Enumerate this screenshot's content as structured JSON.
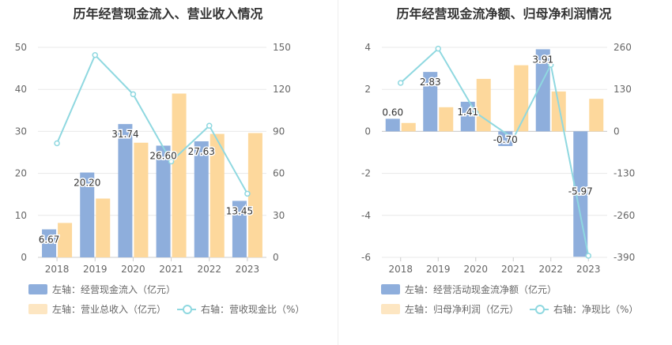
{
  "chart_data": [
    {
      "type": "bar",
      "title": "历年经营现金流入、营业收入情况",
      "categories": [
        "2018",
        "2019",
        "2020",
        "2021",
        "2022",
        "2023"
      ],
      "left_axis": {
        "ticks": [
          "0",
          "10",
          "20",
          "30",
          "40",
          "50"
        ],
        "ylim": [
          0,
          50
        ]
      },
      "right_axis": {
        "ticks": [
          "0",
          "30",
          "60",
          "90",
          "120",
          "150"
        ],
        "ylim": [
          0,
          150
        ]
      },
      "series": [
        {
          "name": "左轴：经营现金流入（亿元）",
          "type": "bar",
          "axis": "left",
          "color": "#8eaedc",
          "values": [
            6.67,
            20.2,
            31.74,
            26.6,
            27.63,
            13.45
          ],
          "labels": [
            "6.67",
            "20.20",
            "31.74",
            "26.60",
            "27.63",
            "13.45"
          ]
        },
        {
          "name": "左轴：营业总收入（亿元）",
          "type": "bar",
          "axis": "left",
          "color": "#fdd89c",
          "values": [
            8.2,
            14.0,
            27.3,
            39.0,
            29.4,
            29.6
          ]
        },
        {
          "name": "右轴：营收现金比（%）",
          "type": "line",
          "axis": "right",
          "color": "#8fd8e0",
          "values": [
            81.5,
            144.5,
            116.5,
            68.5,
            94.0,
            45.5
          ]
        }
      ],
      "legend": {
        "row1": [
          "左轴：经营现金流入（亿元）"
        ],
        "row2": [
          "左轴：营业总收入（亿元）",
          "右轴：营收现金比（%）"
        ]
      }
    },
    {
      "type": "bar",
      "title": "历年经营现金流净额、归母净利润情况",
      "categories": [
        "2018",
        "2019",
        "2020",
        "2021",
        "2022",
        "2023"
      ],
      "left_axis": {
        "ticks": [
          "-6",
          "-4",
          "-2",
          "0",
          "2",
          "4"
        ],
        "ylim": [
          -6,
          4
        ]
      },
      "right_axis": {
        "ticks": [
          "-390",
          "-260",
          "-130",
          "0",
          "130",
          "260"
        ],
        "ylim": [
          -390,
          260
        ]
      },
      "series": [
        {
          "name": "左轴：经营活动现金流净额（亿元）",
          "type": "bar",
          "axis": "left",
          "color": "#8eaedc",
          "values": [
            0.6,
            2.83,
            1.41,
            -0.7,
            3.91,
            -5.97
          ],
          "labels": [
            "0.60",
            "2.83",
            "1.41",
            "-0.70",
            "3.91",
            "-5.97"
          ]
        },
        {
          "name": "左轴：归母净利润（亿元）",
          "type": "bar",
          "axis": "left",
          "color": "#fdd89c",
          "values": [
            0.4,
            1.15,
            2.5,
            3.15,
            1.9,
            1.55
          ]
        },
        {
          "name": "右轴：净现比（%）",
          "type": "line",
          "axis": "right",
          "color": "#8fd8e0",
          "values": [
            150,
            256,
            58,
            -22,
            206,
            -385
          ]
        }
      ],
      "legend": {
        "row1": [
          "左轴：经营活动现金流净额（亿元）"
        ],
        "row2": [
          "左轴：归母净利润（亿元）",
          "右轴：净现比（%）"
        ]
      }
    }
  ]
}
